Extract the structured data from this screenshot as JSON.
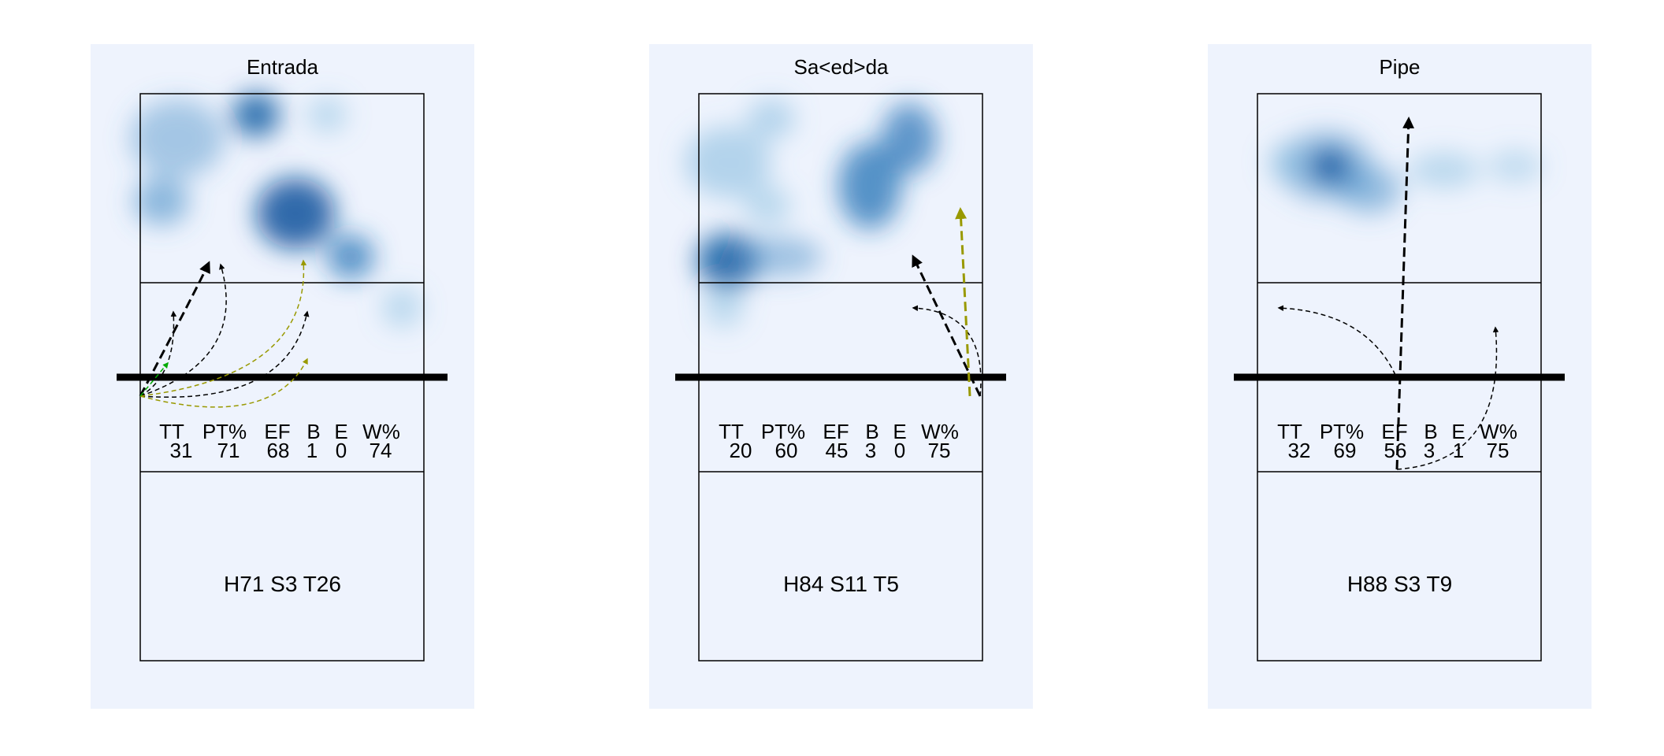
{
  "panels": [
    {
      "title": "Entrada",
      "stats_headers": [
        "TT",
        "PT%",
        "EF",
        "B",
        "E",
        "W%"
      ],
      "stats_values": [
        "31",
        "71",
        "68",
        "1",
        "0",
        "74"
      ],
      "code": "H71 S3 T26",
      "heat_icon": "heatmap-blobs",
      "colors": {
        "arrow_black": "#000000",
        "arrow_olive": "#999900",
        "arrow_green": "#00AA00"
      }
    },
    {
      "title": "Sa<ed>da",
      "stats_headers": [
        "TT",
        "PT%",
        "EF",
        "B",
        "E",
        "W%"
      ],
      "stats_values": [
        "20",
        "60",
        "45",
        "3",
        "0",
        "75"
      ],
      "code": "H84 S11 T5",
      "heat_icon": "heatmap-blobs",
      "colors": {
        "arrow_black": "#000000",
        "arrow_olive": "#999900"
      }
    },
    {
      "title": "Pipe",
      "stats_headers": [
        "TT",
        "PT%",
        "EF",
        "B",
        "E",
        "W%"
      ],
      "stats_values": [
        "32",
        "69",
        "56",
        "3",
        "1",
        "75"
      ],
      "code": "H88 S3 T9",
      "heat_icon": "heatmap-blobs",
      "colors": {
        "arrow_black": "#000000"
      }
    }
  ],
  "colors": {
    "panel_bg": "#EEF3FD",
    "heat": "#08519C"
  }
}
